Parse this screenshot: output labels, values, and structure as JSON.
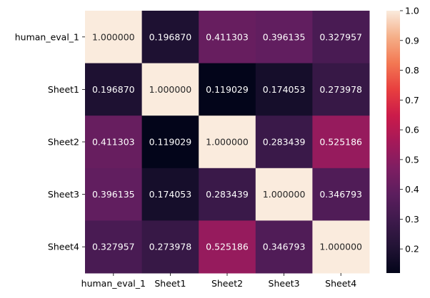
{
  "chart_data": {
    "type": "heatmap",
    "title": "",
    "xlabel": "",
    "ylabel": "",
    "row_labels": [
      "human_eval_1",
      "Sheet1",
      "Sheet2",
      "Sheet3",
      "Sheet4"
    ],
    "col_labels": [
      "human_eval_1",
      "Sheet1",
      "Sheet2",
      "Sheet3",
      "Sheet4"
    ],
    "values": [
      [
        1.0,
        0.19687,
        0.411303,
        0.396135,
        0.327957
      ],
      [
        0.19687,
        1.0,
        0.119029,
        0.174053,
        0.273978
      ],
      [
        0.411303,
        0.119029,
        1.0,
        0.283439,
        0.525186
      ],
      [
        0.396135,
        0.174053,
        0.283439,
        1.0,
        0.346793
      ],
      [
        0.327957,
        0.273978,
        0.525186,
        0.346793,
        1.0
      ]
    ],
    "value_labels": [
      [
        "1.000000",
        "0.196870",
        "0.411303",
        "0.396135",
        "0.327957"
      ],
      [
        "0.196870",
        "1.000000",
        "0.119029",
        "0.174053",
        "0.273978"
      ],
      [
        "0.411303",
        "0.119029",
        "1.000000",
        "0.283439",
        "0.525186"
      ],
      [
        "0.396135",
        "0.174053",
        "0.283439",
        "1.000000",
        "0.346793"
      ],
      [
        "0.327957",
        "0.273978",
        "0.525186",
        "0.346793",
        "1.000000"
      ]
    ],
    "colormap": "rocket",
    "colorbar": {
      "range": [
        0.119029,
        1.0
      ],
      "ticks": [
        "0.2",
        "0.3",
        "0.4",
        "0.5",
        "0.6",
        "0.7",
        "0.8",
        "0.9",
        "1.0"
      ]
    },
    "grid": false,
    "legend": "colorbar-right"
  }
}
